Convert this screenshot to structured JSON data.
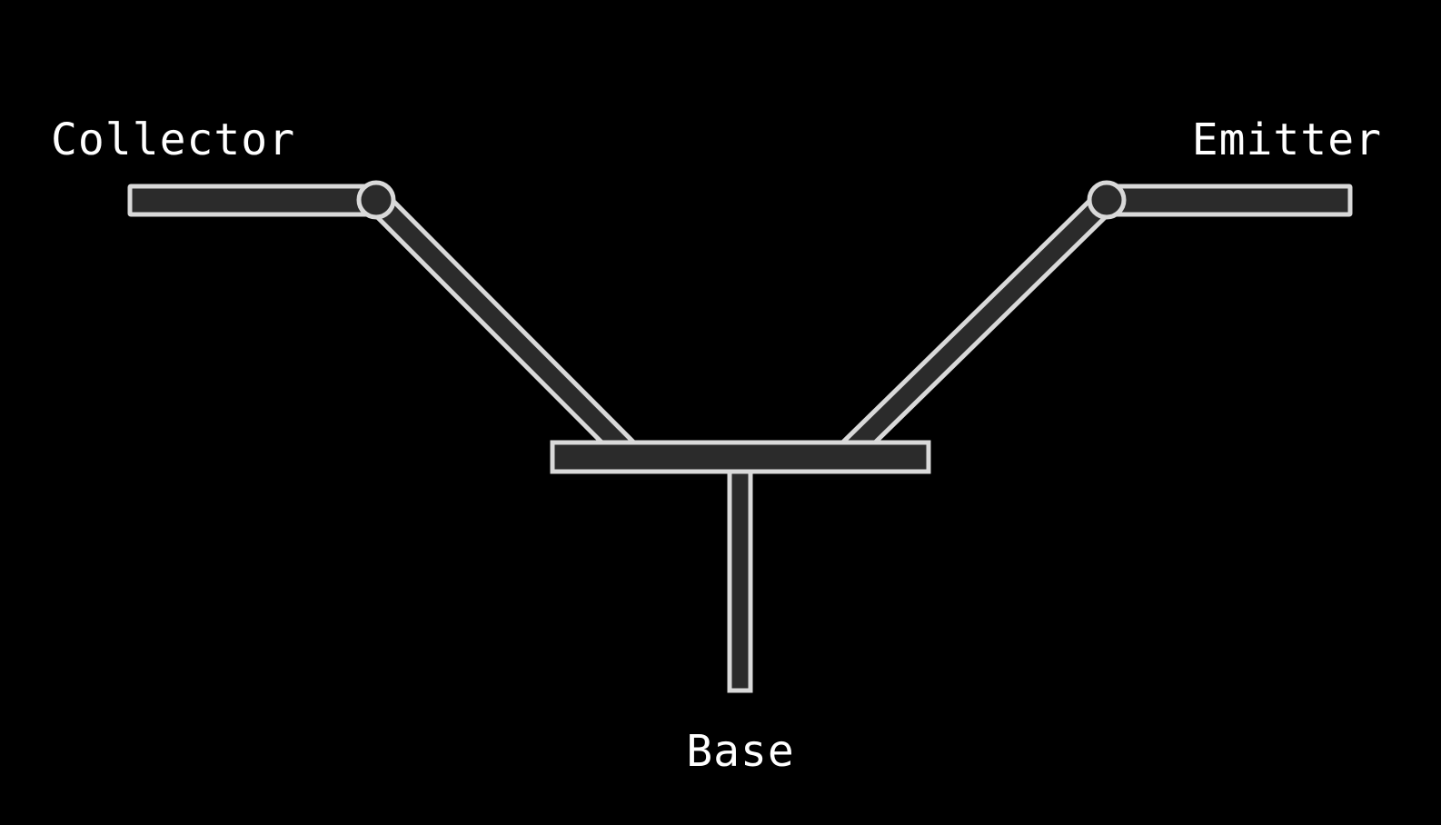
{
  "diagram": {
    "labels": {
      "collector": "Collector",
      "emitter": "Emitter",
      "base": "Base"
    },
    "colors": {
      "background": "#000000",
      "wire_fill": "#2b2b2b",
      "wire_outline": "#d9d9d9",
      "label_text": "#ffffff"
    }
  }
}
